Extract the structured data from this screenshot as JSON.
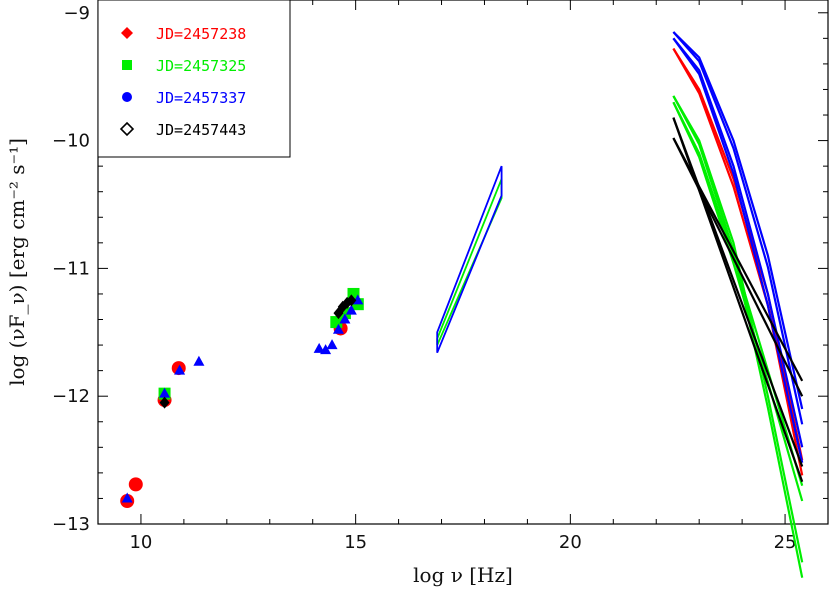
{
  "chart_data": {
    "type": "scatter",
    "xlabel": "log ν [Hz]",
    "ylabel": "log (νF_ν) [erg cm⁻² s⁻¹]",
    "xlim": [
      9.0,
      26.0
    ],
    "ylim": [
      -13.0,
      -8.9
    ],
    "x_ticks": [
      10,
      15,
      20,
      25
    ],
    "y_ticks": [
      -13,
      -12,
      -11,
      -10,
      -9
    ],
    "x_tick_labels": [
      "10",
      "15",
      "20",
      "25"
    ],
    "y_tick_labels": [
      "−13",
      "−12",
      "−11",
      "−10",
      "−9"
    ],
    "grid": false,
    "legend_position": "top-left",
    "legend": [
      {
        "label": "JD=2457238",
        "color": "#ff0000",
        "marker": "diamond-filled"
      },
      {
        "label": "JD=2457325",
        "color": "#00ee00",
        "marker": "square-filled"
      },
      {
        "label": "JD=2457337",
        "color": "#0000ff",
        "marker": "circle-filled"
      },
      {
        "label": "JD=2457443",
        "color": "#000000",
        "marker": "diamond-open"
      }
    ],
    "series": [
      {
        "name": "JD=2457238",
        "color": "#ff0000",
        "points": [
          {
            "x": 9.68,
            "y": -12.82
          },
          {
            "x": 9.88,
            "y": -12.69
          },
          {
            "x": 10.55,
            "y": -12.03
          },
          {
            "x": 10.88,
            "y": -11.78
          },
          {
            "x": 14.65,
            "y": -11.47
          }
        ],
        "gamma_bowties": [
          [
            {
              "x": 22.4,
              "y": -9.28
            },
            {
              "x": 23.0,
              "y": -9.6
            },
            {
              "x": 23.8,
              "y": -10.3
            },
            {
              "x": 24.6,
              "y": -11.2
            },
            {
              "x": 25.4,
              "y": -12.5
            }
          ]
        ]
      },
      {
        "name": "JD=2457325",
        "color": "#00ee00",
        "points": [
          {
            "x": 10.55,
            "y": -11.98
          },
          {
            "x": 14.55,
            "y": -11.42
          },
          {
            "x": 14.75,
            "y": -11.35
          },
          {
            "x": 14.95,
            "y": -11.2
          },
          {
            "x": 15.05,
            "y": -11.28
          }
        ],
        "xray_bowtie": [
          {
            "x": 16.9,
            "y": -11.6
          },
          {
            "x": 18.4,
            "y": -10.45
          },
          {
            "x": 18.4,
            "y": -10.3
          },
          {
            "x": 16.9,
            "y": -11.55
          }
        ],
        "gamma_bowties": [
          [
            {
              "x": 22.4,
              "y": -9.65
            },
            {
              "x": 23.0,
              "y": -10.0
            },
            {
              "x": 23.8,
              "y": -10.8
            },
            {
              "x": 24.6,
              "y": -12.0
            },
            {
              "x": 25.4,
              "y": -13.3
            }
          ],
          [
            {
              "x": 22.4,
              "y": -9.7
            },
            {
              "x": 23.0,
              "y": -10.1
            },
            {
              "x": 23.8,
              "y": -10.9
            },
            {
              "x": 24.6,
              "y": -11.8
            },
            {
              "x": 25.4,
              "y": -12.7
            }
          ]
        ]
      },
      {
        "name": "JD=2457337",
        "color": "#0000ff",
        "points": [
          {
            "x": 9.68,
            "y": -12.8
          },
          {
            "x": 10.55,
            "y": -11.98
          },
          {
            "x": 10.9,
            "y": -11.8
          },
          {
            "x": 11.35,
            "y": -11.73
          },
          {
            "x": 14.15,
            "y": -11.63
          },
          {
            "x": 14.3,
            "y": -11.64
          },
          {
            "x": 14.45,
            "y": -11.6
          },
          {
            "x": 14.6,
            "y": -11.48
          },
          {
            "x": 14.75,
            "y": -11.4
          },
          {
            "x": 14.9,
            "y": -11.33
          },
          {
            "x": 15.05,
            "y": -11.25
          }
        ],
        "xray_bowtie": [
          {
            "x": 16.9,
            "y": -11.66
          },
          {
            "x": 18.4,
            "y": -10.43
          },
          {
            "x": 18.4,
            "y": -10.2
          },
          {
            "x": 16.9,
            "y": -11.5
          }
        ],
        "gamma_bowties": [
          [
            {
              "x": 22.4,
              "y": -9.15
            },
            {
              "x": 23.0,
              "y": -9.35
            },
            {
              "x": 23.8,
              "y": -10.0
            },
            {
              "x": 24.6,
              "y": -10.9
            },
            {
              "x": 25.4,
              "y": -12.1
            }
          ],
          [
            {
              "x": 22.4,
              "y": -9.2
            },
            {
              "x": 23.0,
              "y": -9.45
            },
            {
              "x": 23.8,
              "y": -10.2
            },
            {
              "x": 24.6,
              "y": -11.2
            },
            {
              "x": 25.4,
              "y": -12.4
            }
          ]
        ]
      },
      {
        "name": "JD=2457443",
        "color": "#000000",
        "points": [
          {
            "x": 10.55,
            "y": -12.05
          },
          {
            "x": 14.6,
            "y": -11.35
          },
          {
            "x": 14.7,
            "y": -11.3
          },
          {
            "x": 14.8,
            "y": -11.27
          },
          {
            "x": 14.9,
            "y": -11.25
          }
        ],
        "gamma_bowties": [
          [
            {
              "x": 22.4,
              "y": -9.82
            },
            {
              "x": 25.4,
              "y": -12.55
            }
          ],
          [
            {
              "x": 22.4,
              "y": -9.98
            },
            {
              "x": 25.4,
              "y": -11.88
            }
          ]
        ]
      }
    ]
  }
}
